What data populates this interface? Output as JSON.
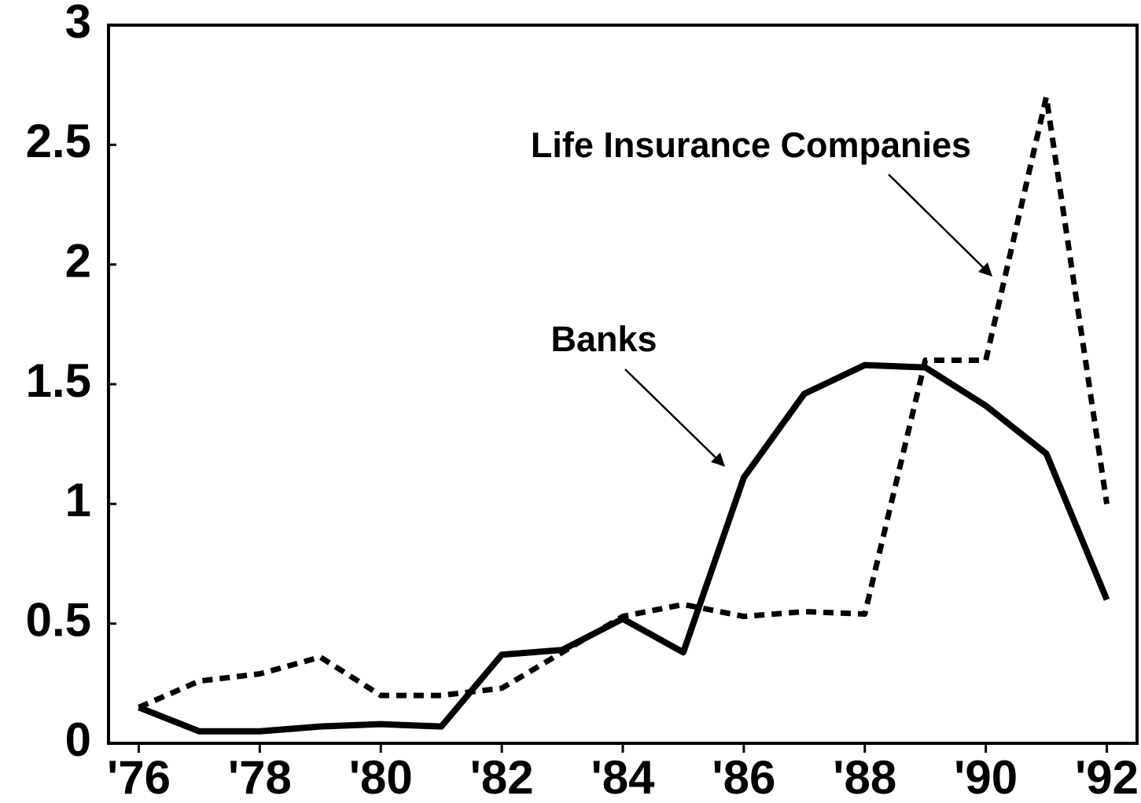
{
  "chart_data": {
    "type": "line",
    "x": [
      1976,
      1977,
      1978,
      1979,
      1980,
      1981,
      1982,
      1983,
      1984,
      1985,
      1986,
      1987,
      1988,
      1989,
      1990,
      1991,
      1992
    ],
    "series": [
      {
        "name": "Banks",
        "color": "#000000",
        "line_style": "solid",
        "values": [
          0.15,
          0.05,
          0.05,
          0.07,
          0.08,
          0.07,
          0.37,
          0.39,
          0.52,
          0.38,
          1.11,
          1.46,
          1.58,
          1.57,
          1.41,
          1.21,
          0.6
        ]
      },
      {
        "name": "Life Insurance Companies",
        "color": "#000000",
        "line_style": "dashed",
        "values": [
          0.15,
          0.26,
          0.29,
          0.36,
          0.2,
          0.2,
          0.23,
          0.38,
          0.53,
          0.58,
          0.53,
          0.55,
          0.54,
          1.6,
          1.6,
          2.7,
          1.0
        ]
      }
    ],
    "xlim": [
      1975.5,
      1992.5
    ],
    "xticks": [
      {
        "value": 1976,
        "label": "'76"
      },
      {
        "value": 1978,
        "label": "'78"
      },
      {
        "value": 1980,
        "label": "'80"
      },
      {
        "value": 1982,
        "label": "'82"
      },
      {
        "value": 1984,
        "label": "'84"
      },
      {
        "value": 1986,
        "label": "'86"
      },
      {
        "value": 1988,
        "label": "'88"
      },
      {
        "value": 1990,
        "label": "'90"
      },
      {
        "value": 1992,
        "label": "'92"
      }
    ],
    "ylim": [
      0,
      3
    ],
    "yticks": [
      0,
      0.5,
      1,
      1.5,
      2,
      2.5,
      3
    ],
    "grid": false
  }
}
